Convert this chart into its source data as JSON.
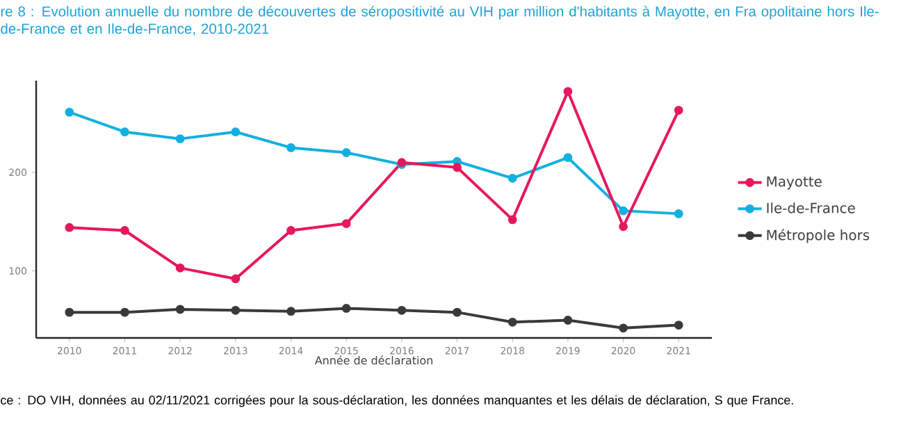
{
  "chart_data": {
    "type": "line",
    "title": "re 8 : Evolution annuelle du nombre de découvertes de séropositivité au VIH par million d'habitants à Mayotte, en Fra opolitaine hors Ile-de-France et en Ile-de-France, 2010-2021",
    "xlabel": "Année de déclaration",
    "x": [
      2010,
      2011,
      2012,
      2013,
      2014,
      2015,
      2016,
      2017,
      2018,
      2019,
      2020,
      2021
    ],
    "xlim": [
      2009.4,
      2021.6
    ],
    "xticks": [
      2010,
      2011,
      2012,
      2013,
      2014,
      2015,
      2016,
      2017,
      2018,
      2019,
      2020,
      2021
    ],
    "ylim": [
      32,
      293
    ],
    "yticks": [
      100,
      200
    ],
    "series": [
      {
        "name": "Mayotte",
        "color": "#e8175d",
        "values": [
          144,
          141,
          103,
          92,
          141,
          148,
          210,
          205,
          152,
          282,
          145,
          263
        ]
      },
      {
        "name": "Ile-de-France",
        "color": "#12b0e0",
        "values": [
          261,
          241,
          234,
          241,
          225,
          220,
          208,
          211,
          194,
          215,
          161,
          158
        ]
      },
      {
        "name": "Métropole hors",
        "color": "#3a3a3a",
        "values": [
          58,
          58,
          61,
          60,
          59,
          62,
          60,
          58,
          48,
          50,
          42,
          45
        ]
      }
    ],
    "marker": "circle",
    "line_style": "solid",
    "grid": false,
    "legend": "right",
    "annotations": [
      "ce : DO VIH, données au 02/11/2021 corrigées pour la sous-déclaration, les données manquantes et les délais de déclaration, S que France."
    ]
  }
}
